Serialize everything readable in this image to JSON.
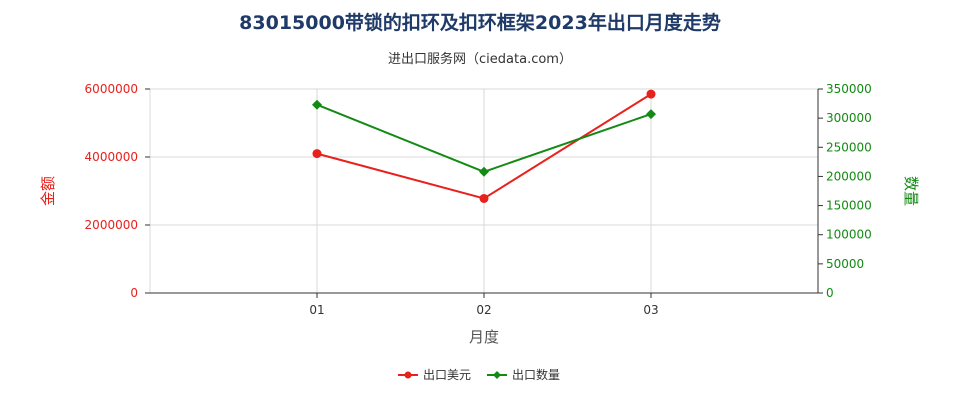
{
  "chart_data": {
    "type": "line",
    "title": "83015000带锁的扣环及扣环框架2023年出口月度走势",
    "subtitle": "进出口服务网（ciedata.com）",
    "categories": [
      "01",
      "02",
      "03"
    ],
    "xlabel": "月度",
    "ylabel_left": "金额",
    "ylabel_right": "数量",
    "ylim_left": [
      0,
      6000000
    ],
    "ylim_right": [
      0,
      350000
    ],
    "left_ticks": [
      "0",
      "2000000",
      "4000000",
      "6000000"
    ],
    "right_ticks": [
      "0",
      "50000",
      "100000",
      "150000",
      "200000",
      "250000",
      "300000",
      "350000"
    ],
    "grid": true,
    "legend_position": "bottom",
    "series": [
      {
        "name": "出口美元",
        "axis": "left",
        "color": "#e8211d",
        "marker": "circle",
        "values": [
          4100000,
          2780000,
          5850000
        ]
      },
      {
        "name": "出口数量",
        "axis": "right",
        "color": "#138a13",
        "marker": "diamond",
        "values": [
          323000,
          208000,
          307000
        ]
      }
    ]
  }
}
